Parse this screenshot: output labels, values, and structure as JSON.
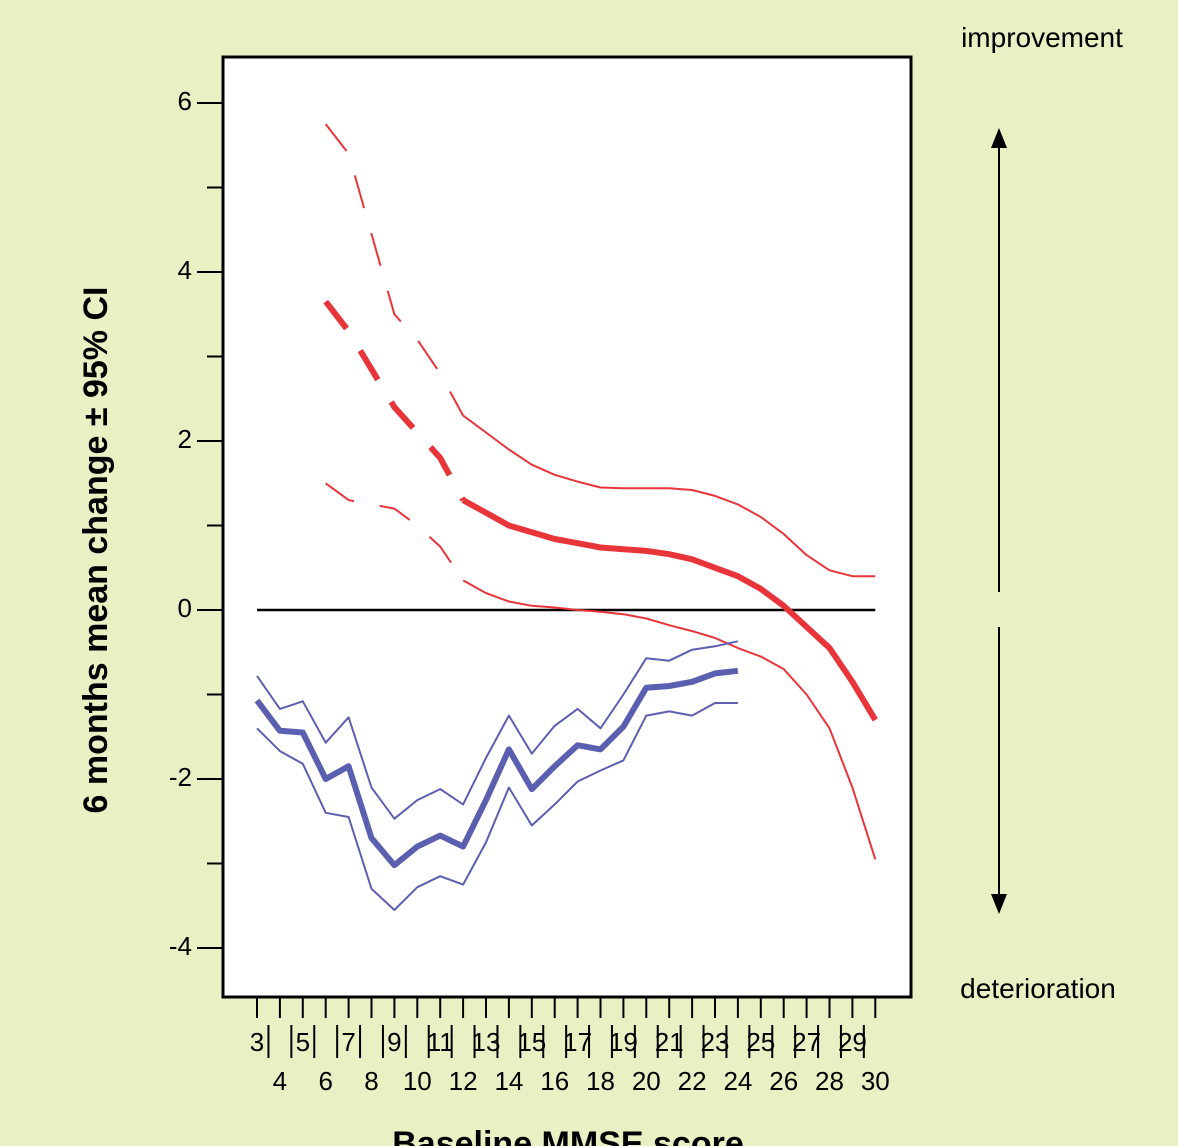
{
  "chart_data": {
    "type": "line",
    "xlabel": "Baseline MMSE score",
    "ylabel": "6 months mean change ± 95% CI",
    "ylim": [
      -4.5,
      6.5
    ],
    "y_ticks": [
      -4,
      -2,
      0,
      2,
      4,
      6
    ],
    "x_ticks_top": [
      "3",
      "5",
      "7",
      "9",
      "11",
      "13",
      "15",
      "17",
      "19",
      "21",
      "23",
      "25",
      "27",
      "29"
    ],
    "x_ticks_bottom": [
      "4",
      "6",
      "8",
      "10",
      "12",
      "14",
      "16",
      "18",
      "20",
      "22",
      "24",
      "26",
      "28",
      "30"
    ],
    "annotations": {
      "top": "improvement",
      "bottom": "deterioration"
    },
    "zero_line": 0,
    "colors": {
      "red": "#e8353a",
      "blue": "#5a5fb0",
      "background": "#ebefc4",
      "plot_bg": "#ffffff"
    },
    "series": [
      {
        "color": "red",
        "style": "mean",
        "x": [
          6,
          7,
          9,
          10,
          11,
          12,
          13,
          14,
          15,
          16,
          17,
          18,
          19,
          20,
          21,
          22,
          23,
          24,
          25,
          26,
          27,
          28,
          29,
          30
        ],
        "values": [
          3.65,
          3.3,
          2.4,
          2.1,
          1.8,
          1.3,
          1.15,
          1.0,
          0.92,
          0.84,
          0.79,
          0.74,
          0.72,
          0.7,
          0.66,
          0.6,
          0.5,
          0.4,
          0.25,
          0.05,
          -0.2,
          -0.45,
          -0.85,
          -1.3
        ]
      },
      {
        "color": "red",
        "style": "upper",
        "x": [
          6,
          7,
          9,
          10,
          11,
          12,
          13,
          14,
          15,
          16,
          17,
          18,
          19,
          20,
          21,
          22,
          23,
          24,
          25,
          26,
          27,
          28,
          29,
          30
        ],
        "values": [
          5.75,
          5.4,
          3.5,
          3.2,
          2.8,
          2.3,
          2.1,
          1.9,
          1.72,
          1.6,
          1.52,
          1.45,
          1.44,
          1.44,
          1.44,
          1.42,
          1.35,
          1.25,
          1.1,
          0.9,
          0.65,
          0.47,
          0.4,
          0.4
        ]
      },
      {
        "color": "red",
        "style": "lower",
        "x": [
          6,
          7,
          9,
          10,
          11,
          12,
          13,
          14,
          15,
          16,
          17,
          18,
          19,
          20,
          21,
          22,
          23,
          24,
          25,
          26,
          27,
          28,
          29,
          30
        ],
        "values": [
          1.5,
          1.3,
          1.2,
          1.0,
          0.75,
          0.35,
          0.2,
          0.1,
          0.05,
          0.03,
          0.0,
          -0.02,
          -0.05,
          -0.1,
          -0.18,
          -0.25,
          -0.33,
          -0.45,
          -0.55,
          -0.7,
          -1.0,
          -1.4,
          -2.1,
          -2.95
        ]
      },
      {
        "color": "blue",
        "style": "mean",
        "x": [
          3,
          4,
          5,
          6,
          7,
          8,
          9,
          10,
          11,
          12,
          13,
          14,
          15,
          16,
          17,
          18,
          19,
          20,
          21,
          22,
          23,
          24
        ],
        "values": [
          -1.07,
          -1.43,
          -1.45,
          -2.0,
          -1.85,
          -2.7,
          -3.02,
          -2.8,
          -2.67,
          -2.8,
          -2.25,
          -1.65,
          -2.12,
          -1.85,
          -1.6,
          -1.65,
          -1.38,
          -0.92,
          -0.9,
          -0.85,
          -0.75,
          -0.72
        ]
      },
      {
        "color": "blue",
        "style": "upper",
        "x": [
          3,
          4,
          5,
          6,
          7,
          8,
          9,
          10,
          11,
          12,
          13,
          14,
          15,
          16,
          17,
          18,
          19,
          20,
          21,
          22,
          23,
          24
        ],
        "values": [
          -0.78,
          -1.17,
          -1.08,
          -1.57,
          -1.27,
          -2.1,
          -2.47,
          -2.25,
          -2.12,
          -2.3,
          -1.75,
          -1.25,
          -1.7,
          -1.37,
          -1.17,
          -1.4,
          -1.0,
          -0.57,
          -0.6,
          -0.47,
          -0.43,
          -0.37
        ]
      },
      {
        "color": "blue",
        "style": "lower",
        "x": [
          3,
          4,
          5,
          6,
          7,
          8,
          9,
          10,
          11,
          12,
          13,
          14,
          15,
          16,
          17,
          18,
          19,
          20,
          21,
          22,
          23,
          24
        ],
        "values": [
          -1.4,
          -1.67,
          -1.82,
          -2.4,
          -2.45,
          -3.3,
          -3.55,
          -3.28,
          -3.15,
          -3.25,
          -2.75,
          -2.1,
          -2.55,
          -2.3,
          -2.03,
          -1.9,
          -1.78,
          -1.25,
          -1.2,
          -1.25,
          -1.1,
          -1.1
        ]
      }
    ]
  }
}
